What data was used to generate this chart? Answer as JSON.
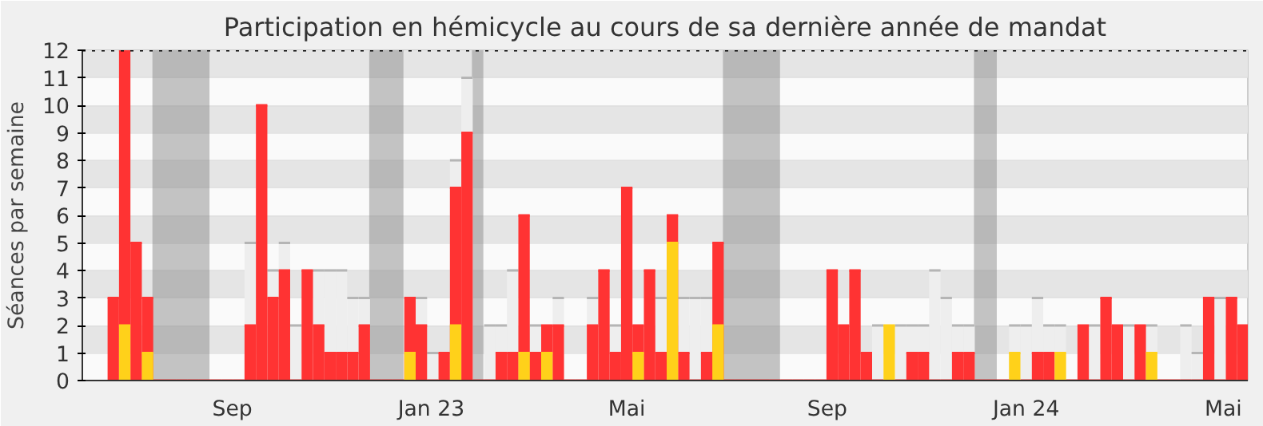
{
  "chart_data": {
    "type": "bar",
    "title": "Participation en hémicycle au cours de sa dernière année de mandat",
    "ylabel": "Séances par semaine",
    "x": [
      "2022-06-20",
      "2022-06-27",
      "2022-07-04",
      "2022-07-11",
      "2022-07-18",
      "2022-07-25",
      "2022-08-01",
      "2022-08-08",
      "2022-08-15",
      "2022-08-22",
      "2022-08-29",
      "2022-09-05",
      "2022-09-12",
      "2022-09-19",
      "2022-09-26",
      "2022-10-03",
      "2022-10-10",
      "2022-10-17",
      "2022-10-24",
      "2022-10-31",
      "2022-11-07",
      "2022-11-14",
      "2022-11-21",
      "2022-11-28",
      "2022-12-05",
      "2022-12-12",
      "2022-12-19",
      "2022-12-26",
      "2023-01-02",
      "2023-01-09",
      "2023-01-16",
      "2023-01-23",
      "2023-01-30",
      "2023-02-06",
      "2023-02-13",
      "2023-02-20",
      "2023-02-27",
      "2023-03-06",
      "2023-03-13",
      "2023-03-20",
      "2023-03-27",
      "2023-04-03",
      "2023-04-10",
      "2023-04-17",
      "2023-04-24",
      "2023-05-01",
      "2023-05-08",
      "2023-05-15",
      "2023-05-22",
      "2023-05-29",
      "2023-06-05",
      "2023-06-12",
      "2023-06-19",
      "2023-06-26",
      "2023-07-03",
      "2023-07-10",
      "2023-07-17",
      "2023-07-24",
      "2023-07-31",
      "2023-08-07",
      "2023-08-14",
      "2023-08-21",
      "2023-08-28",
      "2023-09-04",
      "2023-09-11",
      "2023-09-18",
      "2023-09-25",
      "2023-10-02",
      "2023-10-09",
      "2023-10-16",
      "2023-10-23",
      "2023-10-30",
      "2023-11-06",
      "2023-11-13",
      "2023-11-20",
      "2023-11-27",
      "2023-12-04",
      "2023-12-11",
      "2023-12-18",
      "2023-12-25",
      "2024-01-01",
      "2024-01-08",
      "2024-01-15",
      "2024-01-22",
      "2024-01-29",
      "2024-02-05",
      "2024-02-12",
      "2024-02-19",
      "2024-02-26",
      "2024-03-04",
      "2024-03-11",
      "2024-03-18",
      "2024-03-25",
      "2024-04-01",
      "2024-04-08",
      "2024-04-15",
      "2024-04-22",
      "2024-04-29",
      "2024-05-06",
      "2024-05-13"
    ],
    "series": [
      {
        "color": "#eeeeee",
        "values": [
          null,
          null,
          null,
          null,
          null,
          null,
          null,
          null,
          null,
          null,
          null,
          null,
          5,
          null,
          4,
          5,
          2,
          null,
          4,
          4,
          4,
          3,
          3,
          null,
          null,
          null,
          null,
          3,
          1,
          null,
          8,
          11,
          null,
          2,
          2,
          4,
          null,
          2,
          null,
          3,
          null,
          null,
          3,
          null,
          2,
          null,
          null,
          null,
          3,
          null,
          3,
          3,
          3,
          null,
          null,
          null,
          null,
          null,
          null,
          null,
          null,
          null,
          null,
          null,
          null,
          null,
          null,
          2,
          null,
          2,
          2,
          2,
          4,
          3,
          2,
          2,
          null,
          null,
          null,
          2,
          2,
          3,
          2,
          2,
          null,
          null,
          2,
          null,
          null,
          2,
          null,
          2,
          null,
          null,
          2,
          1,
          null,
          3,
          null,
          null
        ]
      },
      {
        "color": "#ff3333",
        "values": [
          3,
          12,
          5,
          3,
          0,
          0,
          0,
          0,
          0,
          0,
          0,
          0,
          2,
          10,
          3,
          4,
          0,
          4,
          2,
          1,
          1,
          1,
          2,
          0,
          0,
          0,
          3,
          2,
          0,
          1,
          7,
          9,
          0,
          0,
          1,
          1,
          6,
          1,
          2,
          2,
          0,
          0,
          2,
          4,
          1,
          7,
          2,
          4,
          1,
          6,
          1,
          0,
          1,
          5,
          0,
          0,
          0,
          0,
          0,
          0,
          0,
          0,
          0,
          4,
          2,
          4,
          1,
          0,
          null,
          0,
          1,
          1,
          0,
          0,
          1,
          1,
          0,
          0,
          0,
          null,
          0,
          1,
          1,
          null,
          0,
          2,
          0,
          3,
          2,
          0,
          2,
          null,
          0,
          0,
          0,
          0,
          3,
          0,
          3,
          2
        ]
      },
      {
        "color": "#ffd11a",
        "values": [
          null,
          2,
          null,
          1,
          null,
          null,
          null,
          null,
          null,
          null,
          null,
          null,
          null,
          null,
          null,
          null,
          null,
          null,
          null,
          null,
          null,
          null,
          null,
          null,
          null,
          null,
          1,
          null,
          null,
          null,
          2,
          null,
          null,
          null,
          null,
          null,
          1,
          null,
          1,
          null,
          null,
          null,
          null,
          null,
          null,
          null,
          1,
          null,
          null,
          5,
          null,
          null,
          null,
          2,
          null,
          null,
          null,
          null,
          null,
          null,
          null,
          null,
          null,
          null,
          null,
          null,
          null,
          null,
          2,
          null,
          null,
          null,
          null,
          null,
          null,
          null,
          null,
          null,
          null,
          1,
          null,
          null,
          null,
          1,
          null,
          null,
          null,
          null,
          null,
          null,
          null,
          1,
          null,
          null,
          null,
          null,
          null,
          null,
          null,
          null
        ]
      }
    ],
    "xlim": [
      "2022-06-01",
      "2024-05-16"
    ],
    "xticks": [
      {
        "value": "2022-09-01",
        "label": "Sep"
      },
      {
        "value": "2023-01-01",
        "label": "Jan 23"
      },
      {
        "value": "2023-05-01",
        "label": "Mai"
      },
      {
        "value": "2023-09-01",
        "label": "Sep"
      },
      {
        "value": "2024-01-01",
        "label": "Jan 24"
      },
      {
        "value": "2024-05-01",
        "label": "Mai"
      }
    ],
    "ylim": [
      0,
      12
    ],
    "yticks": [
      0,
      1,
      2,
      3,
      4,
      5,
      6,
      7,
      8,
      9,
      10,
      11,
      12
    ],
    "grid": "y",
    "bands": [
      {
        "axis": "x",
        "from": "2022-07-14",
        "to": "2022-08-18",
        "color": "#808080"
      },
      {
        "axis": "x",
        "from": "2022-11-24",
        "to": "2022-12-15",
        "color": "#808080"
      },
      {
        "axis": "x",
        "from": "2023-01-26",
        "to": "2023-02-02",
        "color": "#808080"
      },
      {
        "axis": "x",
        "from": "2023-06-29",
        "to": "2023-08-03",
        "color": "#808080"
      },
      {
        "axis": "x",
        "from": "2023-11-30",
        "to": "2023-12-14",
        "color": "#808080"
      }
    ],
    "ref_lines": [
      {
        "axis": "y",
        "value": 12,
        "color": "#000000",
        "line_style": "dotted"
      }
    ]
  }
}
